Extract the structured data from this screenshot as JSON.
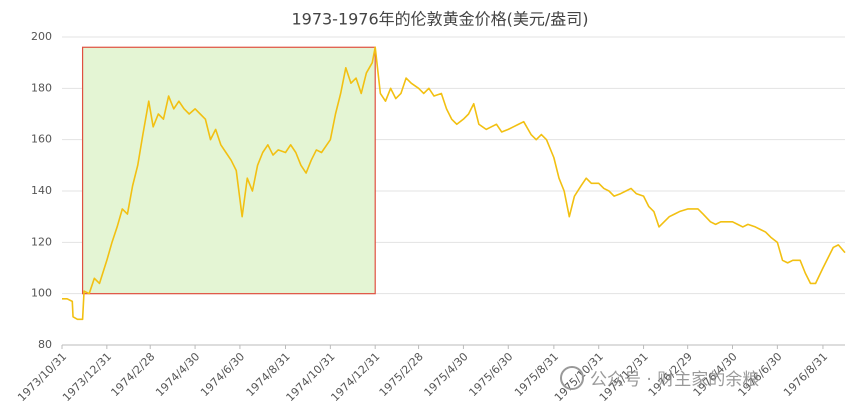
{
  "chart_data": {
    "type": "line",
    "title": "1973-1976年的伦敦黄金价格(美元/盎司)",
    "watermark": "公众号 · 财主家的余粮",
    "color": "#f2c012",
    "grid": true,
    "ylim": [
      80,
      200
    ],
    "yticks": [
      80,
      100,
      120,
      140,
      160,
      180,
      200
    ],
    "xlim": [
      "1973/10/31",
      "1976/9/30"
    ],
    "xticks": [
      "1973/10/31",
      "1973/12/31",
      "1974/2/28",
      "1974/4/30",
      "1974/6/30",
      "1974/8/31",
      "1974/10/31",
      "1974/12/31",
      "1975/2/28",
      "1975/4/30",
      "1975/6/30",
      "1975/8/31",
      "1975/10/31",
      "1975/12/31",
      "1976/2/29",
      "1976/4/30",
      "1976/6/30",
      "1976/8/31"
    ],
    "highlight": {
      "x": [
        "1973/11/28",
        "1974/12/31"
      ],
      "y": [
        100,
        196
      ],
      "fill": "#e4f5d4",
      "stroke": "#e05040"
    },
    "x": [
      "1973/10/31",
      "1973/11/7",
      "1973/11/14",
      "1973/11/15",
      "1973/11/21",
      "1973/11/28",
      "1973/11/30",
      "1973/12/7",
      "1973/12/14",
      "1973/12/21",
      "1973/12/31",
      "1974/1/7",
      "1974/1/14",
      "1974/1/21",
      "1974/1/28",
      "1974/2/4",
      "1974/2/11",
      "1974/2/18",
      "1974/2/26",
      "1974/3/4",
      "1974/3/11",
      "1974/3/18",
      "1974/3/25",
      "1974/4/1",
      "1974/4/8",
      "1974/4/15",
      "1974/4/22",
      "1974/4/30",
      "1974/5/7",
      "1974/5/14",
      "1974/5/21",
      "1974/5/28",
      "1974/6/4",
      "1974/6/11",
      "1974/6/18",
      "1974/6/25",
      "1974/7/3",
      "1974/7/10",
      "1974/7/17",
      "1974/7/24",
      "1974/7/31",
      "1974/8/7",
      "1974/8/14",
      "1974/8/21",
      "1974/8/31",
      "1974/9/7",
      "1974/9/14",
      "1974/9/21",
      "1974/9/28",
      "1974/10/5",
      "1974/10/12",
      "1974/10/19",
      "1974/10/31",
      "1974/11/7",
      "1974/11/14",
      "1974/11/21",
      "1974/11/28",
      "1974/12/5",
      "1974/12/12",
      "1974/12/19",
      "1974/12/27",
      "1974/12/31",
      "1975/1/7",
      "1975/1/14",
      "1975/1/21",
      "1975/1/28",
      "1975/2/4",
      "1975/2/11",
      "1975/2/18",
      "1975/2/28",
      "1975/3/7",
      "1975/3/14",
      "1975/3/21",
      "1975/3/31",
      "1975/4/7",
      "1975/4/14",
      "1975/4/21",
      "1975/4/30",
      "1975/5/7",
      "1975/5/14",
      "1975/5/21",
      "1975/5/31",
      "1975/6/7",
      "1975/6/14",
      "1975/6/21",
      "1975/6/30",
      "1975/7/7",
      "1975/7/14",
      "1975/7/21",
      "1975/7/31",
      "1975/8/7",
      "1975/8/14",
      "1975/8/21",
      "1975/8/31",
      "1975/9/7",
      "1975/9/14",
      "1975/9/21",
      "1975/9/28",
      "1975/10/7",
      "1975/10/14",
      "1975/10/21",
      "1975/10/31",
      "1975/11/7",
      "1975/11/14",
      "1975/11/21",
      "1975/11/30",
      "1975/12/7",
      "1975/12/14",
      "1975/12/21",
      "1975/12/31",
      "1976/1/7",
      "1976/1/14",
      "1976/1/21",
      "1976/1/28",
      "1976/2/4",
      "1976/2/11",
      "1976/2/18",
      "1976/2/29",
      "1976/3/7",
      "1976/3/14",
      "1976/3/21",
      "1976/3/31",
      "1976/4/7",
      "1976/4/14",
      "1976/4/21",
      "1976/4/30",
      "1976/5/7",
      "1976/5/14",
      "1976/5/21",
      "1976/5/31",
      "1976/6/7",
      "1976/6/14",
      "1976/6/21",
      "1976/6/30",
      "1976/7/7",
      "1976/7/14",
      "1976/7/21",
      "1976/7/31",
      "1976/8/7",
      "1976/8/14",
      "1976/8/21",
      "1976/8/31",
      "1976/9/7",
      "1976/9/14",
      "1976/9/21",
      "1976/9/30"
    ],
    "values": [
      98,
      98,
      97,
      91,
      90,
      90,
      101,
      100,
      106,
      104,
      113,
      120,
      126,
      133,
      131,
      142,
      150,
      162,
      175,
      165,
      170,
      168,
      177,
      172,
      175,
      172,
      170,
      172,
      170,
      168,
      160,
      164,
      158,
      155,
      152,
      148,
      130,
      145,
      140,
      150,
      155,
      158,
      154,
      156,
      155,
      158,
      155,
      150,
      147,
      152,
      156,
      155,
      160,
      170,
      178,
      188,
      182,
      184,
      178,
      186,
      190,
      196,
      178,
      175,
      180,
      176,
      178,
      184,
      182,
      180,
      178,
      180,
      177,
      178,
      172,
      168,
      166,
      168,
      170,
      174,
      166,
      164,
      165,
      166,
      163,
      164,
      165,
      166,
      167,
      162,
      160,
      162,
      160,
      153,
      145,
      140,
      130,
      138,
      142,
      145,
      143,
      143,
      141,
      140,
      138,
      139,
      140,
      141,
      139,
      138,
      134,
      132,
      126,
      128,
      130,
      131,
      132,
      133,
      133,
      133,
      131,
      128,
      127,
      128,
      128,
      128,
      127,
      126,
      127,
      126,
      125,
      124,
      122,
      120,
      113,
      112,
      113,
      113,
      108,
      104,
      104,
      110,
      114,
      118,
      119,
      116
    ]
  }
}
